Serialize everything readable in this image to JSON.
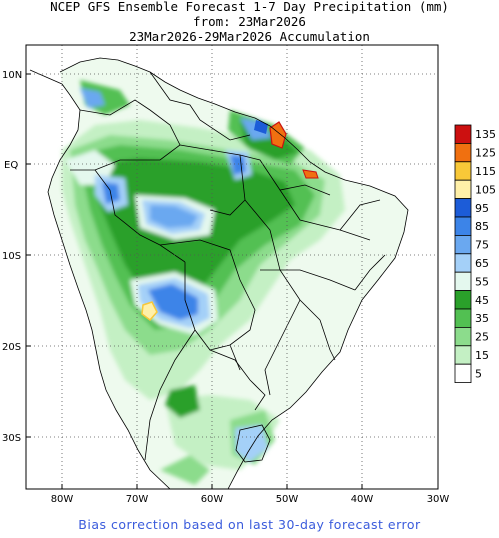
{
  "header": {
    "line1": "NCEP GFS Ensemble Forecast 1-7 Day Precipitation (mm)",
    "line2": "from: 23Mar2026",
    "line3": "23Mar2026-29Mar2026 Accumulation"
  },
  "map": {
    "region": "South America",
    "lat_labels": [
      "10N",
      "EQ",
      "10S",
      "20S",
      "30S"
    ],
    "lon_labels": [
      "80W",
      "70W",
      "60W",
      "50W",
      "40W",
      "30W"
    ],
    "grid": "dotted",
    "land_color": "#ffffff",
    "boundary_color": "#000000"
  },
  "colorbar": {
    "unit": "mm",
    "levels": [
      "135",
      "125",
      "115",
      "105",
      "95",
      "85",
      "75",
      "65",
      "55",
      "45",
      "35",
      "25",
      "15",
      "5"
    ],
    "colors": [
      "#cc1010",
      "#f07010",
      "#f8c838",
      "#fff0a8",
      "#1c5cd8",
      "#3c84e8",
      "#6aa8f0",
      "#a4d0f8",
      "#e4f8ee",
      "#2aa02a",
      "#52c052",
      "#8cdc8c",
      "#c4f0c4",
      "#ffffff"
    ]
  },
  "footer": {
    "note": "Bias correction based on last 30-day forecast error"
  }
}
